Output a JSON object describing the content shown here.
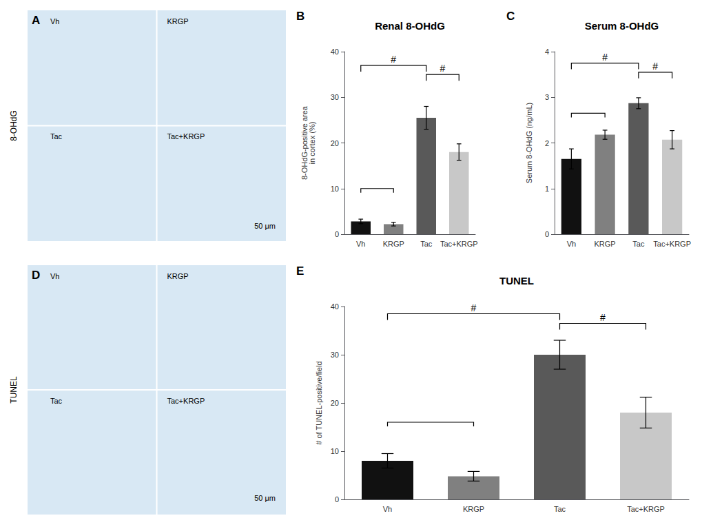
{
  "chart_data": [
    {
      "type": "image",
      "panel_label": "A",
      "ylabel": "8-OHdG",
      "color": "#d8e8f4",
      "annotations": [
        "Vh",
        "KRGP",
        "Tac",
        "Tac+KRGP",
        "50 μm"
      ]
    },
    {
      "type": "bar",
      "panel_label": "B",
      "title": "Renal 8-OHdG",
      "categories": [
        "Vh",
        "KRGP",
        "Tac",
        "Tac+KRGP"
      ],
      "values": [
        2.8,
        2.2,
        25.5,
        18.0
      ],
      "errors": [
        0.5,
        0.4,
        2.5,
        1.8
      ],
      "colors": [
        "#111111",
        "#808080",
        "#595959",
        "#c8c8c8"
      ],
      "ylabel": "8-OHdG-positive area\nin cortex (%)",
      "ylim": [
        0,
        40
      ],
      "yticks": [
        0,
        10,
        20,
        30,
        40
      ],
      "grid": false,
      "brackets": [
        {
          "from": "Vh",
          "to": "KRGP",
          "y": 10.0
        },
        {
          "from": "Vh",
          "to": "Tac",
          "y": 37.0,
          "label": "#"
        },
        {
          "from": "Tac",
          "to": "Tac+KRGP",
          "y": 35.0,
          "label": "#"
        }
      ]
    },
    {
      "type": "bar",
      "panel_label": "C",
      "title": "Serum 8-OHdG",
      "categories": [
        "Vh",
        "KRGP",
        "Tac",
        "Tac+KRGP"
      ],
      "values": [
        1.65,
        2.18,
        2.87,
        2.07
      ],
      "errors": [
        0.22,
        0.1,
        0.12,
        0.2
      ],
      "colors": [
        "#111111",
        "#808080",
        "#595959",
        "#c8c8c8"
      ],
      "ylabel": "Serum 8-OHdG (ng/mL)",
      "ylim": [
        0,
        4
      ],
      "yticks": [
        0,
        1,
        2,
        3,
        4
      ],
      "grid": false,
      "brackets": [
        {
          "from": "Vh",
          "to": "KRGP",
          "y": 2.65
        },
        {
          "from": "Vh",
          "to": "Tac",
          "y": 3.75,
          "label": "#"
        },
        {
          "from": "Tac",
          "to": "Tac+KRGP",
          "y": 3.55,
          "label": "#"
        }
      ]
    },
    {
      "type": "image",
      "panel_label": "D",
      "ylabel": "TUNEL",
      "color": "#d8e8f4",
      "annotations": [
        "Vh",
        "KRGP",
        "Tac",
        "Tac+KRGP",
        "50 μm"
      ]
    },
    {
      "type": "bar",
      "panel_label": "E",
      "title": "TUNEL",
      "categories": [
        "Vh",
        "KRGP",
        "Tac",
        "Tac+KRGP"
      ],
      "values": [
        8.0,
        4.8,
        30.0,
        18.0
      ],
      "errors": [
        1.5,
        1.0,
        3.0,
        3.2
      ],
      "colors": [
        "#111111",
        "#808080",
        "#595959",
        "#c8c8c8"
      ],
      "ylabel": "# of TUNEL-positive/field",
      "ylim": [
        0,
        40
      ],
      "yticks": [
        0,
        10,
        20,
        30,
        40
      ],
      "grid": false,
      "brackets": [
        {
          "from": "Vh",
          "to": "KRGP",
          "y": 16.0
        },
        {
          "from": "Vh",
          "to": "Tac",
          "y": 38.5,
          "label": "#"
        },
        {
          "from": "Tac",
          "to": "Tac+KRGP",
          "y": 36.5,
          "label": "#"
        }
      ]
    }
  ]
}
